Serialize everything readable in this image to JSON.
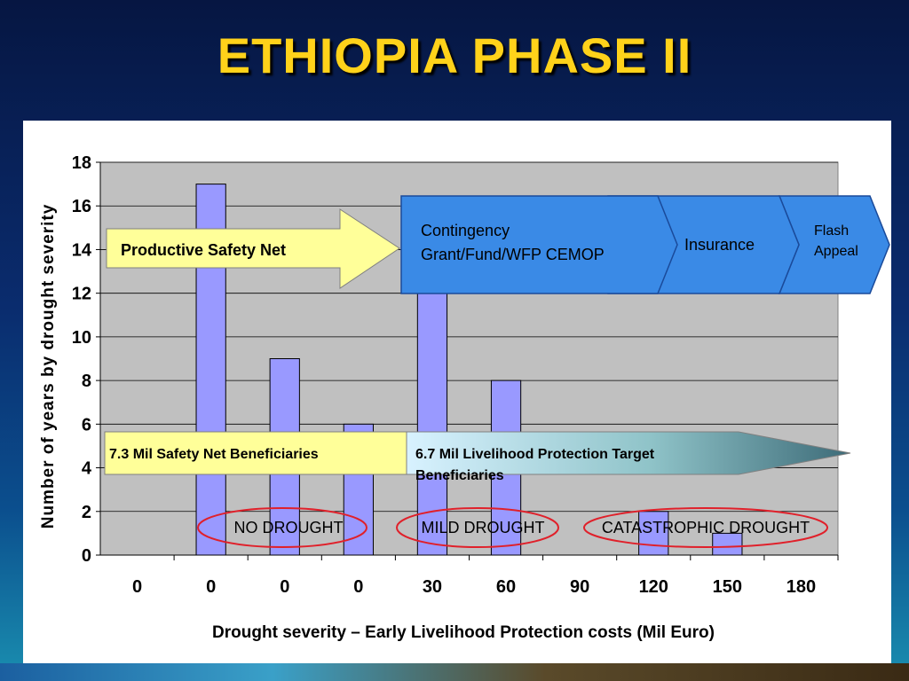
{
  "title": "ETHIOPIA PHASE II",
  "chart_data": {
    "type": "bar",
    "categories": [
      "0",
      "0",
      "0",
      "0",
      "30",
      "60",
      "90",
      "120",
      "150",
      "180"
    ],
    "values": [
      0,
      17,
      9,
      6,
      13,
      8,
      0,
      2,
      1,
      0
    ],
    "xlabel": "Drought severity – Early Livelihood Protection costs (Mil Euro)",
    "ylabel": "Number of years by drought severity",
    "ylim": [
      0,
      18
    ],
    "yticks": [
      0,
      2,
      4,
      6,
      8,
      10,
      12,
      14,
      16,
      18
    ],
    "grid": true,
    "bar_color": "#9999ff",
    "plot_background": "#c0c0c0"
  },
  "annotations": {
    "safety_net": "Productive Safety Net",
    "contingency_line1": "Contingency",
    "contingency_line2": "Grant/Fund/WFP CEMOP",
    "insurance": "Insurance",
    "flash_line1": "Flash",
    "flash_line2": "Appeal",
    "beneficiaries_safety": "7.3  Mil Safety Net Beneficiaries",
    "beneficiaries_lp_line1": "6.7 Mil Livelihood Protection Target",
    "beneficiaries_lp_line2": "Beneficiaries"
  },
  "severity_labels": {
    "none": "NO DROUGHT",
    "mild": "MILD DROUGHT",
    "catastrophic": "CATASTROPHIC DROUGHT"
  },
  "colors": {
    "title": "#ffd21a",
    "arrow_yellow": "#ffff99",
    "arrow_blue": "#3a8ae6",
    "ellipse_red": "#e0202a"
  }
}
